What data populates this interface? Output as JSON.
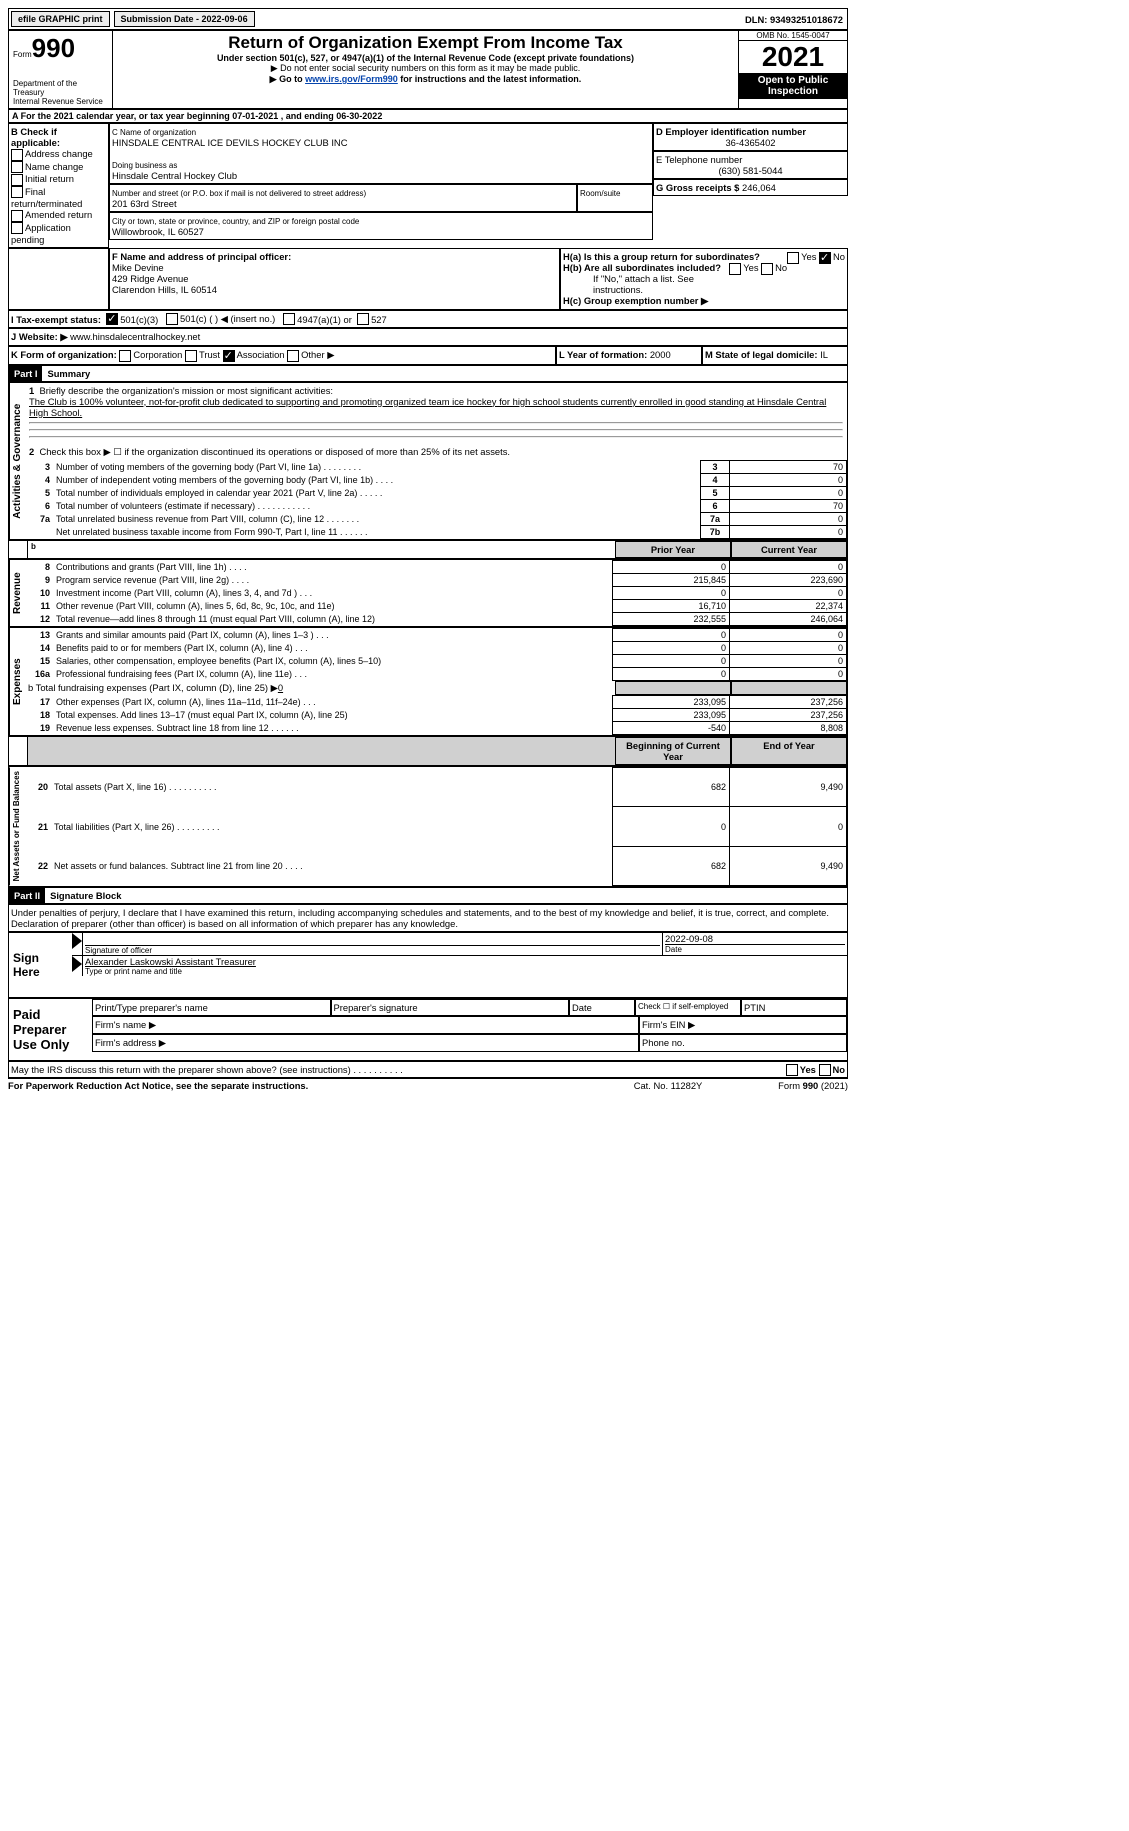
{
  "top": {
    "efile": "efile GRAPHIC print",
    "subdate_lbl": "Submission Date - ",
    "subdate": "2022-09-06",
    "dln_lbl": "DLN: ",
    "dln": "93493251018672"
  },
  "header": {
    "form_word": "Form",
    "form_no": "990",
    "dept1": "Department of the Treasury",
    "dept2": "Internal Revenue Service",
    "title": "Return of Organization Exempt From Income Tax",
    "sub1": "Under section 501(c), 527, or 4947(a)(1) of the Internal Revenue Code (except private foundations)",
    "sub2": "▶ Do not enter social security numbers on this form as it may be made public.",
    "sub3_pre": "▶ Go to ",
    "sub3_link": "www.irs.gov/Form990",
    "sub3_post": " for instructions and the latest information.",
    "omb": "OMB No. 1545-0047",
    "year": "2021",
    "inspect": "Open to Public Inspection"
  },
  "A": {
    "line": "A For the 2021 calendar year, or tax year beginning 07-01-2021     , and ending 06-30-2022"
  },
  "B": {
    "lbl": "B Check if applicable:",
    "opts": [
      "Address change",
      "Name change",
      "Initial return",
      "Final return/terminated",
      "Amended return",
      "Application pending"
    ]
  },
  "C": {
    "lbl": "C Name of organization",
    "name": "HINSDALE CENTRAL ICE DEVILS HOCKEY CLUB INC",
    "dba_lbl": "Doing business as",
    "dba": "Hinsdale Central Hockey Club",
    "addr_lbl": "Number and street (or P.O. box if mail is not delivered to street address)",
    "addr": "201 63rd Street",
    "room_lbl": "Room/suite",
    "city_lbl": "City or town, state or province, country, and ZIP or foreign postal code",
    "city": "Willowbrook, IL  60527"
  },
  "D": {
    "lbl": "D Employer identification number",
    "val": "36-4365402"
  },
  "E": {
    "lbl": "E Telephone number",
    "val": "(630) 581-5044"
  },
  "G": {
    "lbl": "G Gross receipts $ ",
    "val": "246,064"
  },
  "F": {
    "lbl": "F  Name and address of principal officer:",
    "name": "Mike Devine",
    "addr1": "429 Ridge Avenue",
    "addr2": "Clarendon Hills, IL  60514"
  },
  "H": {
    "a": "H(a)  Is this a group return for subordinates?",
    "b": "H(b)  Are all subordinates included?",
    "b_note": "If \"No,\" attach a list. See instructions.",
    "c": "H(c)  Group exemption number ▶",
    "yes": "Yes",
    "no": "No"
  },
  "I": {
    "lbl": "I    Tax-exempt status:",
    "o1": "501(c)(3)",
    "o2": "501(c) (  ) ◀ (insert no.)",
    "o3": "4947(a)(1) or",
    "o4": "527"
  },
  "J": {
    "lbl": "J    Website: ▶",
    "val": "  www.hinsdalecentralhockey.net"
  },
  "K": {
    "lbl": "K Form of organization:",
    "o1": "Corporation",
    "o2": "Trust",
    "o3": "Association",
    "o4": "Other ▶"
  },
  "L": {
    "lbl": "L Year of formation: ",
    "val": "2000"
  },
  "M": {
    "lbl": "M State of legal domicile: ",
    "val": "IL"
  },
  "parts": {
    "p1": "Part I",
    "p1t": "Summary",
    "p2": "Part II",
    "p2t": "Signature Block"
  },
  "summary": {
    "sideA": "Activities & Governance",
    "sideR": "Revenue",
    "sideE": "Expenses",
    "sideN": "Net Assets or Fund Balances",
    "l1_lbl": "Briefly describe the organization's mission or most significant activities:",
    "l1_txt": "The Club is 100% volunteer, not-for-profit club dedicated to supporting and promoting organized team ice hockey for high school students currently enrolled in good standing at Hinsdale Central High School.",
    "l2": "Check this box ▶ ☐  if the organization discontinued its operations or disposed of more than 25% of its net assets.",
    "rows_a": [
      {
        "n": "3",
        "t": "Number of voting members of the governing body (Part VI, line 1a)    .     .     .     .     .     .     .     .",
        "k": "3",
        "v": "70"
      },
      {
        "n": "4",
        "t": "Number of independent voting members of the governing body (Part VI, line 1b)    .     .     .     .",
        "k": "4",
        "v": "0"
      },
      {
        "n": "5",
        "t": "Total number of individuals employed in calendar year 2021 (Part V, line 2a)    .     .     .     .     .",
        "k": "5",
        "v": "0"
      },
      {
        "n": "6",
        "t": "Total number of volunteers (estimate if necessary)    .     .     .     .     .     .     .     .     .     .     .",
        "k": "6",
        "v": "70"
      },
      {
        "n": "7a",
        "t": "Total unrelated business revenue from Part VIII, column (C), line 12    .     .     .     .     .     .     .",
        "k": "7a",
        "v": "0"
      },
      {
        "n": "",
        "t": "Net unrelated business taxable income from Form 990-T, Part I, line 11    .     .     .     .     .     .",
        "k": "7b",
        "v": "0"
      }
    ],
    "hdr_prior": "Prior Year",
    "hdr_curr": "Current Year",
    "rows_r": [
      {
        "n": "8",
        "t": "Contributions and grants (Part VIII, line 1h)    .     .     .     .",
        "p": "0",
        "c": "0"
      },
      {
        "n": "9",
        "t": "Program service revenue (Part VIII, line 2g)    .     .     .     .",
        "p": "215,845",
        "c": "223,690"
      },
      {
        "n": "10",
        "t": "Investment income (Part VIII, column (A), lines 3, 4, and 7d )    .     .     .",
        "p": "0",
        "c": "0"
      },
      {
        "n": "11",
        "t": "Other revenue (Part VIII, column (A), lines 5, 6d, 8c, 9c, 10c, and 11e)",
        "p": "16,710",
        "c": "22,374"
      },
      {
        "n": "12",
        "t": "Total revenue—add lines 8 through 11 (must equal Part VIII, column (A), line 12)",
        "p": "232,555",
        "c": "246,064"
      }
    ],
    "rows_e": [
      {
        "n": "13",
        "t": "Grants and similar amounts paid (Part IX, column (A), lines 1–3 )    .     .     .",
        "p": "0",
        "c": "0"
      },
      {
        "n": "14",
        "t": "Benefits paid to or for members (Part IX, column (A), line 4)    .     .     .",
        "p": "0",
        "c": "0"
      },
      {
        "n": "15",
        "t": "Salaries, other compensation, employee benefits (Part IX, column (A), lines 5–10)",
        "p": "0",
        "c": "0"
      },
      {
        "n": "16a",
        "t": "Professional fundraising fees (Part IX, column (A), line 11e)    .     .     .",
        "p": "0",
        "c": "0"
      }
    ],
    "l16b_pre": "b  Total fundraising expenses (Part IX, column (D), line 25) ▶",
    "l16b_val": "0",
    "rows_e2": [
      {
        "n": "17",
        "t": "Other expenses (Part IX, column (A), lines 11a–11d, 11f–24e)    .     .     .",
        "p": "233,095",
        "c": "237,256"
      },
      {
        "n": "18",
        "t": "Total expenses. Add lines 13–17 (must equal Part IX, column (A), line 25)",
        "p": "233,095",
        "c": "237,256"
      },
      {
        "n": "19",
        "t": "Revenue less expenses. Subtract line 18 from line 12    .     .     .     .     .     .",
        "p": "-540",
        "c": "8,808"
      }
    ],
    "hdr_beg": "Beginning of Current Year",
    "hdr_end": "End of Year",
    "rows_n": [
      {
        "n": "20",
        "t": "Total assets (Part X, line 16)    .     .     .     .     .     .     .     .     .     .",
        "p": "682",
        "c": "9,490"
      },
      {
        "n": "21",
        "t": "Total liabilities (Part X, line 26)    .     .     .     .     .     .     .     .     .",
        "p": "0",
        "c": "0"
      },
      {
        "n": "22",
        "t": "Net assets or fund balances. Subtract line 21 from line 20    .     .     .     .",
        "p": "682",
        "c": "9,490"
      }
    ]
  },
  "sig": {
    "declare": "Under penalties of perjury, I declare that I have examined this return, including accompanying schedules and statements, and to the best of my knowledge and belief, it is true, correct, and complete. Declaration of preparer (other than officer) is based on all information of which preparer has any knowledge.",
    "signhere": "Sign Here",
    "sig_of": "Signature of officer",
    "date": "Date",
    "sig_date": "2022-09-08",
    "name": "Alexander Laskowski  Assistant Treasurer",
    "name_lbl": "Type or print name and title",
    "paid": "Paid Preparer Use Only",
    "p1": "Print/Type preparer's name",
    "p2": "Preparer's signature",
    "p3": "Date",
    "p4": "Check ☐  if self-employed",
    "p5": "PTIN",
    "fn": "Firm's name    ▶",
    "fe": "Firm's EIN ▶",
    "fa": "Firm's address ▶",
    "ph": "Phone no.",
    "may": "May the IRS discuss this return with the preparer shown above? (see instructions)    .     .     .     .     .     .     .     .     .     .",
    "paperwork": "For Paperwork Reduction Act Notice, see the separate instructions.",
    "cat": "Cat. No. 11282Y",
    "formfoot": "Form 990 (2021)"
  }
}
